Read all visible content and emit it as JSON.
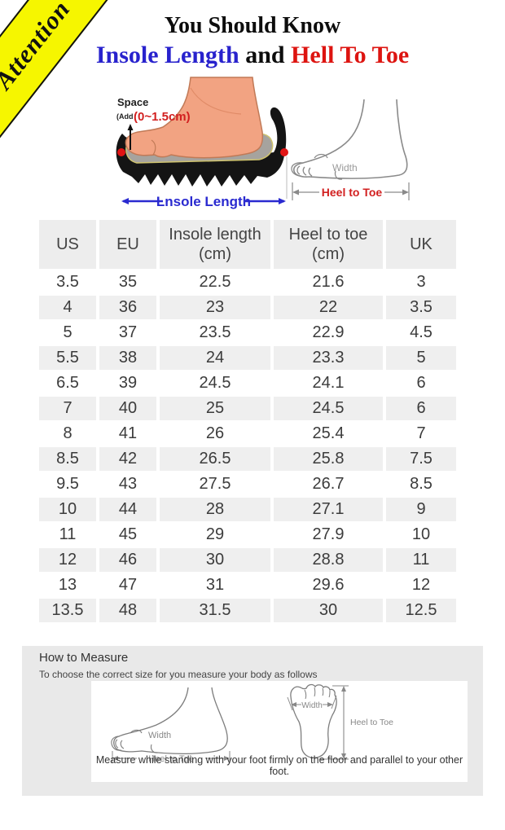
{
  "header": {
    "ribbon_label": "Attention",
    "title_line1": "You Should Know",
    "title_blue": "Insole Length",
    "title_and": " and ",
    "title_red": "Hell To Toe"
  },
  "shoe_diagram": {
    "space_label": "Space",
    "add_prefix": "(Add",
    "add_value": "(0~1.5cm)",
    "insole_label": "Lnsole Length"
  },
  "foot_diagram": {
    "width_label": "Width",
    "heel_to_toe_label": "Heel to Toe"
  },
  "size_table": {
    "headers": [
      "US",
      "EU",
      "Insole length\n(cm)",
      "Heel to toe\n(cm)",
      "UK"
    ],
    "rows": [
      [
        "3.5",
        "35",
        "22.5",
        "21.6",
        "3"
      ],
      [
        "4",
        "36",
        "23",
        "22",
        "3.5"
      ],
      [
        "5",
        "37",
        "23.5",
        "22.9",
        "4.5"
      ],
      [
        "5.5",
        "38",
        "24",
        "23.3",
        "5"
      ],
      [
        "6.5",
        "39",
        "24.5",
        "24.1",
        "6"
      ],
      [
        "7",
        "40",
        "25",
        "24.5",
        "6"
      ],
      [
        "8",
        "41",
        "26",
        "25.4",
        "7"
      ],
      [
        "8.5",
        "42",
        "26.5",
        "25.8",
        "7.5"
      ],
      [
        "9.5",
        "43",
        "27.5",
        "26.7",
        "8.5"
      ],
      [
        "10",
        "44",
        "28",
        "27.1",
        "9"
      ],
      [
        "11",
        "45",
        "29",
        "27.9",
        "10"
      ],
      [
        "12",
        "46",
        "30",
        "28.8",
        "11"
      ],
      [
        "13",
        "47",
        "31",
        "29.6",
        "12"
      ],
      [
        "13.5",
        "48",
        "31.5",
        "30",
        "12.5"
      ]
    ]
  },
  "measure_section": {
    "title": "How to Measure",
    "subtitle": "To choose the correct size for you measure your body as follows",
    "side_view": {
      "width_label": "Width",
      "heel_to_toe_label": "Heel to Toe"
    },
    "top_view": {
      "width_label": "Width",
      "heel_to_toe_label": "Heel to Toe"
    },
    "caption": "Measure while standing with your foot firmly on the floor and parallel to your other foot."
  },
  "colors": {
    "ribbon_yellow": "#f6f600",
    "title_blue": "#2822cd",
    "title_red": "#dd1410",
    "label_red": "#d22020",
    "label_blue": "#2a2ad0",
    "row_alt_gray": "#efefef",
    "section_gray": "#e9e9e9"
  }
}
